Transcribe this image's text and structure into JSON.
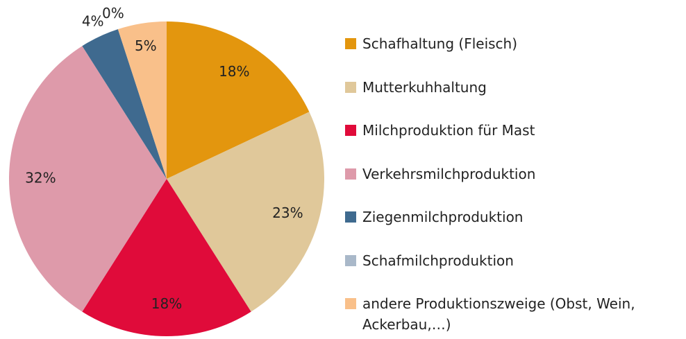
{
  "chart_data": {
    "type": "pie",
    "categories": [
      "Schafhaltung (Fleisch)",
      "Mutterkuhhaltung",
      "Milchproduktion für Mast",
      "Verkehrsmilchproduktion",
      "Ziegenmilchproduktion",
      "Schafmilchproduktion",
      "andere Produktionszweige (Obst, Wein, Ackerbau,…)"
    ],
    "values": [
      18,
      23,
      18,
      32,
      4,
      0,
      5
    ],
    "value_labels": [
      "18%",
      "23%",
      "18%",
      "32%",
      "4%",
      "0%",
      "5%"
    ],
    "colors": [
      "#e3960e",
      "#e0c89a",
      "#e00b3a",
      "#de9aaa",
      "#3f6a8f",
      "#a9b8c9",
      "#f9c08a"
    ],
    "legend": "right"
  }
}
